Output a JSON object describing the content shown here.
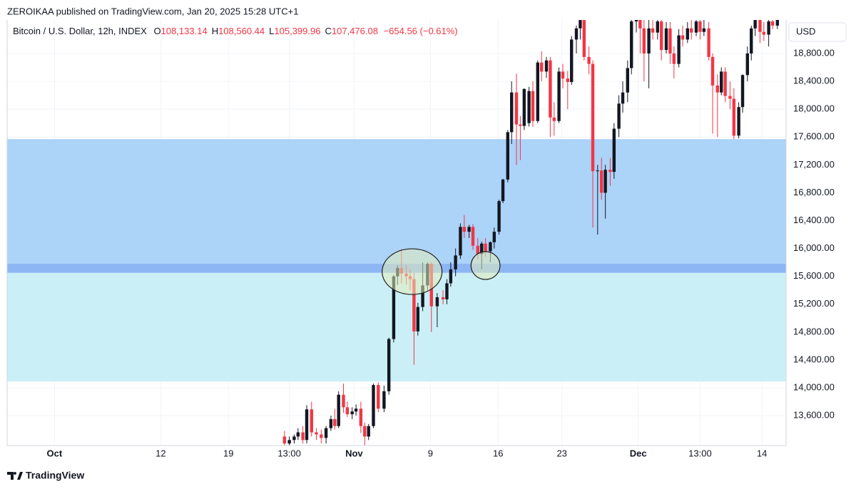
{
  "header": "ZEROIKAA published on TradingView.com, Jan 20, 2025 15:28 UTC+1",
  "footer": "TradingView",
  "chart_data": {
    "type": "candlestick",
    "symbol": "Bitcoin / U.S. Dollar, 12h, INDEX",
    "ohlc": [
      {
        "key": "O",
        "value": "108,133.14"
      },
      {
        "key": "H",
        "value": "108,560.44"
      },
      {
        "key": "L",
        "value": "105,399.96"
      },
      {
        "key": "C",
        "value": "107,476.08"
      }
    ],
    "change": "−654.56 (−0.61%)",
    "currency": "USD",
    "up_color": "#131722",
    "down_color": "#f23645",
    "grid": true,
    "xlim": [
      -4.9,
      75.7
    ],
    "ylim": [
      13171,
      19281
    ],
    "xticks": [
      {
        "value": 0,
        "label": "Oct"
      },
      {
        "value": 11,
        "label": "12"
      },
      {
        "value": 18,
        "label": "19"
      },
      {
        "value": 24.3,
        "label": "13:00"
      },
      {
        "value": 31,
        "label": "Nov"
      },
      {
        "value": 38.9,
        "label": "9"
      },
      {
        "value": 45.9,
        "label": "16"
      },
      {
        "value": 52.5,
        "label": "23"
      },
      {
        "value": 60.4,
        "label": "Dec"
      },
      {
        "value": 66.8,
        "label": "13:00"
      },
      {
        "value": 73.2,
        "label": "14"
      }
    ],
    "yticks": [
      {
        "value": 13600,
        "label": "13,600.00"
      },
      {
        "value": 14000,
        "label": "14,000.00"
      },
      {
        "value": 14400,
        "label": "14,400.00"
      },
      {
        "value": 14800,
        "label": "14,800.00"
      },
      {
        "value": 15200,
        "label": "15,200.00"
      },
      {
        "value": 15600,
        "label": "15,600.00"
      },
      {
        "value": 16000,
        "label": "16,000.00"
      },
      {
        "value": 16400,
        "label": "16,400.00"
      },
      {
        "value": 16800,
        "label": "16,800.00"
      },
      {
        "value": 17200,
        "label": "17,200.00"
      },
      {
        "value": 17600,
        "label": "17,600.00"
      },
      {
        "value": 18000,
        "label": "18,000.00"
      },
      {
        "value": 18400,
        "label": "18,400.00"
      },
      {
        "value": 18800,
        "label": "18,800.00"
      }
    ],
    "zones": [
      {
        "top": 17570,
        "bottom": 15650,
        "color": "#acd3f8"
      },
      {
        "top": 15780,
        "bottom": 15650,
        "color": "#8db6f4"
      },
      {
        "top": 15650,
        "bottom": 14090,
        "color": "#cbeff6"
      }
    ],
    "ellipses": [
      {
        "x0": 33.9,
        "x1": 40.1,
        "top": 15995,
        "bottom": 15340
      },
      {
        "x0": 43.1,
        "x1": 46.1,
        "top": 15955,
        "bottom": 15555
      }
    ],
    "x": [
      23.8,
      24.3,
      24.8,
      25.2,
      25.7,
      26.1,
      26.6,
      27.1,
      27.6,
      28.1,
      28.6,
      29.0,
      29.4,
      29.9,
      30.3,
      30.8,
      31.2,
      31.7,
      32.1,
      32.5,
      33.0,
      33.5,
      34.1,
      34.6,
      35.1,
      35.5,
      35.9,
      36.4,
      36.8,
      37.2,
      37.6,
      38.1,
      38.6,
      39.0,
      39.6,
      40.2,
      40.6,
      41.0,
      41.5,
      42.0,
      42.4,
      42.9,
      43.3,
      43.8,
      44.2,
      44.6,
      45.1,
      45.5,
      46.0,
      46.4,
      46.9,
      47.3,
      47.8,
      48.2,
      48.6,
      49.1,
      49.5,
      50.0,
      50.4,
      50.9,
      51.3,
      51.7,
      52.2,
      52.6,
      53.1,
      53.5,
      54.0,
      54.4,
      54.8,
      55.3,
      55.7,
      56.2,
      56.6,
      57.0,
      57.5,
      57.9,
      58.4,
      58.8,
      59.3,
      59.7,
      60.2,
      60.6,
      61.0,
      61.5,
      61.9,
      62.4,
      62.8,
      63.3,
      63.7,
      64.1,
      64.6,
      65.0,
      65.5,
      65.9,
      66.4,
      66.8,
      67.2,
      67.7,
      68.1,
      68.6,
      69.0,
      69.4,
      69.9,
      70.3,
      70.8,
      71.2,
      71.7,
      72.1,
      72.5,
      73.0,
      73.4,
      73.9,
      74.3,
      74.8
    ],
    "open": [
      13300,
      13200,
      13250,
      13300,
      13360,
      13250,
      13690,
      13360,
      13330,
      13280,
      13420,
      13550,
      13450,
      13900,
      13720,
      13620,
      13660,
      13700,
      13450,
      13300,
      13450,
      14040,
      13700,
      13950,
      14700,
      15600,
      15720,
      15640,
      15600,
      15560,
      14810,
      15160,
      15470,
      15780,
      15170,
      15300,
      15270,
      15500,
      15700,
      15900,
      16310,
      16240,
      16310,
      16040,
      15920,
      16070,
      15960,
      16090,
      16240,
      16680,
      16990,
      17670,
      18240,
      17780,
      17760,
      17800,
      18260,
      17830,
      18670,
      18540,
      18700,
      17880,
      17830,
      18540,
      18440,
      18390,
      19000,
      19160,
      19280,
      18750,
      18650,
      17110,
      17120,
      16800,
      17130,
      17100,
      17720,
      18080,
      18240,
      18590,
      19260,
      19300,
      19160,
      18800,
      19160,
      19100,
      19260,
      18850,
      19160,
      18800,
      18650,
      19060,
      19000,
      19160,
      19100,
      19260,
      19110,
      19160,
      18750,
      18340,
      18240,
      18540,
      18190,
      18150,
      17620,
      18030,
      18490,
      18800,
      19160,
      19280,
      19110,
      19070,
      19260,
      19200
    ],
    "high": [
      13380,
      13300,
      13330,
      13420,
      13450,
      13750,
      13800,
      13420,
      13400,
      13450,
      13600,
      13700,
      13950,
      14060,
      13800,
      13720,
      13760,
      13800,
      13500,
      13480,
      14060,
      14080,
      14030,
      14720,
      15620,
      15760,
      15990,
      15760,
      15700,
      15650,
      15220,
      15800,
      15800,
      15800,
      15360,
      15400,
      15560,
      15800,
      16000,
      16360,
      16480,
      16340,
      16350,
      16150,
      16100,
      16150,
      16100,
      16300,
      16700,
      17000,
      17700,
      18400,
      18510,
      17900,
      18300,
      18320,
      18400,
      18700,
      18830,
      18750,
      18750,
      18100,
      18600,
      18650,
      18550,
      19050,
      19200,
      19400,
      19400,
      18900,
      18700,
      17200,
      17300,
      17200,
      17300,
      17800,
      18200,
      18400,
      18700,
      19400,
      19400,
      19400,
      19300,
      19300,
      19350,
      19400,
      19350,
      19250,
      19250,
      18900,
      19150,
      19200,
      19250,
      19300,
      19350,
      19350,
      19300,
      19250,
      18800,
      18500,
      18600,
      18600,
      18400,
      18300,
      18100,
      18500,
      18900,
      19200,
      19350,
      19300,
      19250,
      19300,
      19300,
      19330
    ],
    "low": [
      13150,
      13150,
      13200,
      13250,
      13200,
      13200,
      13300,
      13250,
      13200,
      13200,
      13380,
      13400,
      13420,
      13640,
      13580,
      13550,
      13600,
      13350,
      13120,
      13250,
      13420,
      13650,
      13650,
      13900,
      14650,
      15480,
      15500,
      15480,
      15400,
      14330,
      14750,
      15100,
      15400,
      14800,
      14870,
      15200,
      15200,
      15450,
      15600,
      15850,
      16150,
      16150,
      15980,
      15850,
      15700,
      15880,
      15800,
      16000,
      16200,
      16650,
      16950,
      17500,
      17200,
      17270,
      17700,
      17750,
      17750,
      17800,
      18400,
      18450,
      17600,
      17620,
      17800,
      18300,
      18000,
      18350,
      18800,
      19000,
      18700,
      18500,
      16300,
      16200,
      16700,
      16430,
      16900,
      17000,
      17600,
      17950,
      18100,
      18500,
      19100,
      18800,
      18400,
      18300,
      19000,
      19000,
      18700,
      18800,
      18650,
      18440,
      18600,
      18900,
      18950,
      19000,
      19050,
      19000,
      19050,
      18700,
      17650,
      17600,
      18200,
      18100,
      18000,
      17570,
      17580,
      17950,
      18400,
      18700,
      19050,
      18950,
      18980,
      18900,
      19150,
      19150
    ],
    "close": [
      13200,
      13250,
      13300,
      13360,
      13250,
      13690,
      13360,
      13330,
      13280,
      13420,
      13550,
      13450,
      13900,
      13720,
      13620,
      13660,
      13700,
      13450,
      13300,
      13450,
      14040,
      13700,
      13950,
      14700,
      15600,
      15720,
      15640,
      15600,
      15560,
      14810,
      15160,
      15470,
      15780,
      15170,
      15300,
      15270,
      15500,
      15700,
      15900,
      16310,
      16240,
      16310,
      16040,
      15920,
      16070,
      15960,
      16090,
      16240,
      16680,
      16990,
      17670,
      18240,
      17780,
      17760,
      18290,
      18260,
      17830,
      18670,
      18540,
      18700,
      17880,
      17830,
      18540,
      18440,
      18390,
      19000,
      19160,
      19280,
      18750,
      18650,
      17110,
      17120,
      16800,
      17130,
      17100,
      17720,
      18080,
      18240,
      18590,
      19260,
      19300,
      19160,
      18800,
      19160,
      19100,
      19260,
      18850,
      19160,
      18800,
      18650,
      19060,
      19000,
      19160,
      19100,
      19260,
      19110,
      19160,
      18750,
      18340,
      18240,
      18540,
      18190,
      18150,
      17620,
      18030,
      18490,
      18800,
      19160,
      19280,
      19110,
      19070,
      19260,
      19200,
      19290
    ]
  }
}
